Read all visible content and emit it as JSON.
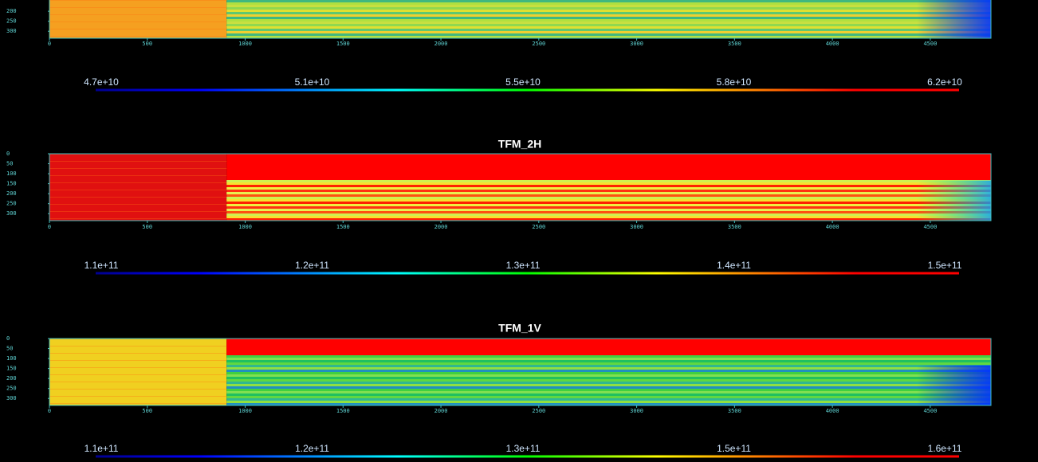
{
  "chart_data": [
    {
      "type": "heatmap",
      "xlim": [
        0,
        4810
      ],
      "ylim": [
        0,
        335
      ],
      "xticks": [
        0,
        500,
        1000,
        1500,
        2000,
        2500,
        3000,
        3500,
        4000,
        4500
      ],
      "yticks": [
        200,
        250,
        300
      ],
      "colorbar_labels": [
        "4.7e+10",
        "5.1e+10",
        "5.5e+10",
        "5.8e+10",
        "6.2e+10"
      ]
    },
    {
      "type": "heatmap",
      "title": "TFM_2H",
      "xlim": [
        0,
        4810
      ],
      "ylim": [
        0,
        335
      ],
      "xticks": [
        0,
        500,
        1000,
        1500,
        2000,
        2500,
        3000,
        3500,
        4000,
        4500
      ],
      "yticks": [
        0,
        50,
        100,
        150,
        200,
        250,
        300
      ],
      "colorbar_labels": [
        "1.1e+11",
        "1.2e+11",
        "1.3e+11",
        "1.4e+11",
        "1.5e+11"
      ]
    },
    {
      "type": "heatmap",
      "title": "TFM_1V",
      "xlim": [
        0,
        4810
      ],
      "ylim": [
        0,
        335
      ],
      "xticks": [
        0,
        500,
        1000,
        1500,
        2000,
        2500,
        3000,
        3500,
        4000,
        4500
      ],
      "yticks": [
        0,
        50,
        100,
        150,
        200,
        250,
        300
      ],
      "colorbar_labels": [
        "1.1e+11",
        "1.2e+11",
        "1.3e+11",
        "1.5e+11",
        "1.6e+11"
      ]
    }
  ]
}
